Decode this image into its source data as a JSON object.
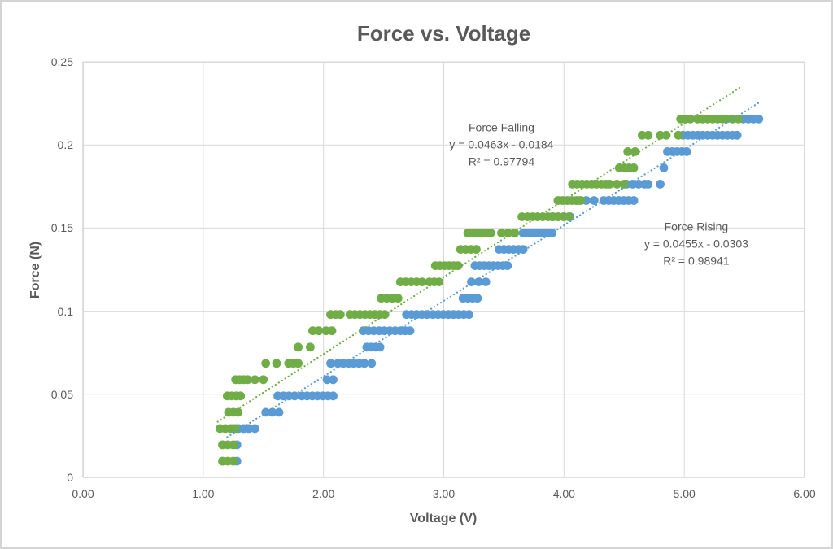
{
  "chart_data": {
    "type": "scatter",
    "title": "Force vs. Voltage",
    "xlabel": "Voltage (V)",
    "ylabel": "Force (N)",
    "xlim": [
      0,
      6
    ],
    "ylim": [
      0,
      0.25
    ],
    "x_tick_values": [
      0,
      1,
      2,
      3,
      4,
      5,
      6
    ],
    "x_tick_labels": [
      "0.00",
      "1.00",
      "2.00",
      "3.00",
      "4.00",
      "5.00",
      "6.00"
    ],
    "y_tick_values": [
      0,
      0.05,
      0.1,
      0.15,
      0.2,
      0.25
    ],
    "y_tick_labels": [
      "0",
      "0.05",
      "0.1",
      "0.15",
      "0.2",
      "0.25"
    ],
    "grid": true,
    "legend": "none",
    "colors": {
      "gridline": "#d9d9d9",
      "axis_line": "#bfbfbf",
      "text": "#595959",
      "rising": "#5b9bd5",
      "falling": "#70ad47"
    },
    "series": [
      {
        "name": "Force Rising",
        "color": "#5b9bd5",
        "marker": "circle",
        "trendline": {
          "slope": 0.0455,
          "intercept": -0.0303,
          "r_squared": 0.98941,
          "style": "dotted",
          "x_range": [
            1.2,
            5.62
          ]
        },
        "annotation": {
          "lines": [
            "Force Rising",
            "y = 0.0455x - 0.0303",
            "R² = 0.98941"
          ],
          "anchor_v": 5.1,
          "anchor_f": 0.1405
        },
        "point_runs": [
          [
            0.0098,
            1.28,
            1.28,
            1
          ],
          [
            0.0196,
            1.28,
            1.28,
            1
          ],
          [
            0.0294,
            1.25,
            1.38,
            4
          ],
          [
            0.0294,
            1.43,
            1.43,
            1
          ],
          [
            0.0392,
            1.52,
            1.63,
            3
          ],
          [
            0.049,
            1.62,
            1.76,
            4
          ],
          [
            0.049,
            1.82,
            2.08,
            7
          ],
          [
            0.0588,
            2.03,
            2.08,
            2
          ],
          [
            0.0686,
            2.06,
            2.06,
            1
          ],
          [
            0.0686,
            2.12,
            2.34,
            6
          ],
          [
            0.0686,
            2.4,
            2.4,
            1
          ],
          [
            0.0784,
            2.36,
            2.47,
            4
          ],
          [
            0.0882,
            2.33,
            2.64,
            8
          ],
          [
            0.0882,
            2.68,
            2.72,
            2
          ],
          [
            0.098,
            2.69,
            2.86,
            5
          ],
          [
            0.098,
            2.91,
            3.21,
            8
          ],
          [
            0.1078,
            3.16,
            3.28,
            4
          ],
          [
            0.1176,
            3.23,
            3.35,
            3
          ],
          [
            0.1274,
            3.26,
            3.53,
            8
          ],
          [
            0.1372,
            3.46,
            3.66,
            6
          ],
          [
            0.147,
            3.66,
            3.9,
            7
          ],
          [
            0.1568,
            3.9,
            4.05,
            4
          ],
          [
            0.1666,
            4.12,
            4.25,
            3
          ],
          [
            0.1666,
            4.33,
            4.58,
            7
          ],
          [
            0.1764,
            4.52,
            4.67,
            4
          ],
          [
            0.1764,
            4.7,
            4.7,
            1
          ],
          [
            0.1764,
            4.8,
            4.8,
            1
          ],
          [
            0.1862,
            4.83,
            4.83,
            1
          ],
          [
            0.196,
            4.86,
            5.02,
            5
          ],
          [
            0.2058,
            4.99,
            5.44,
            12
          ],
          [
            0.2156,
            5.49,
            5.62,
            4
          ]
        ]
      },
      {
        "name": "Force Falling",
        "color": "#70ad47",
        "marker": "circle",
        "trendline": {
          "slope": 0.0463,
          "intercept": -0.0184,
          "r_squared": 0.97794,
          "style": "dotted",
          "x_range": [
            1.12,
            5.46
          ]
        },
        "annotation": {
          "lines": [
            "Force Falling",
            "y = 0.0463x - 0.0184",
            "R² = 0.97794"
          ],
          "anchor_v": 3.48,
          "anchor_f": 0.2
        },
        "point_runs": [
          [
            0.0098,
            1.16,
            1.25,
            3
          ],
          [
            0.0196,
            1.16,
            1.25,
            3
          ],
          [
            0.0294,
            1.14,
            1.27,
            4
          ],
          [
            0.0392,
            1.21,
            1.29,
            3
          ],
          [
            0.049,
            1.2,
            1.31,
            4
          ],
          [
            0.0588,
            1.27,
            1.37,
            4
          ],
          [
            0.0588,
            1.43,
            1.43,
            1
          ],
          [
            0.0588,
            1.5,
            1.5,
            1
          ],
          [
            0.0686,
            1.52,
            1.52,
            1
          ],
          [
            0.0686,
            1.61,
            1.61,
            1
          ],
          [
            0.0686,
            1.71,
            1.79,
            3
          ],
          [
            0.0784,
            1.79,
            1.79,
            1
          ],
          [
            0.0784,
            1.89,
            1.89,
            1
          ],
          [
            0.0882,
            1.91,
            1.96,
            2
          ],
          [
            0.0882,
            2.02,
            2.07,
            2
          ],
          [
            0.098,
            2.06,
            2.14,
            3
          ],
          [
            0.098,
            2.22,
            2.51,
            8
          ],
          [
            0.1078,
            2.48,
            2.62,
            4
          ],
          [
            0.1176,
            2.64,
            2.82,
            5
          ],
          [
            0.1176,
            2.88,
            2.96,
            3
          ],
          [
            0.1274,
            2.93,
            3.12,
            6
          ],
          [
            0.1372,
            3.14,
            3.27,
            4
          ],
          [
            0.147,
            3.2,
            3.39,
            6
          ],
          [
            0.147,
            3.48,
            3.59,
            3
          ],
          [
            0.1568,
            3.65,
            3.74,
            3
          ],
          [
            0.1568,
            3.78,
            4.04,
            7
          ],
          [
            0.1666,
            3.95,
            4.14,
            6
          ],
          [
            0.1764,
            4.07,
            4.35,
            8
          ],
          [
            0.1764,
            4.38,
            4.5,
            3
          ],
          [
            0.1862,
            4.46,
            4.58,
            4
          ],
          [
            0.196,
            4.53,
            4.59,
            2
          ],
          [
            0.2058,
            4.65,
            4.7,
            2
          ],
          [
            0.2058,
            4.8,
            4.85,
            2
          ],
          [
            0.2058,
            4.95,
            4.95,
            1
          ],
          [
            0.2156,
            4.97,
            5.05,
            3
          ],
          [
            0.2156,
            5.11,
            5.32,
            6
          ],
          [
            0.2156,
            5.35,
            5.45,
            3
          ]
        ]
      }
    ]
  }
}
